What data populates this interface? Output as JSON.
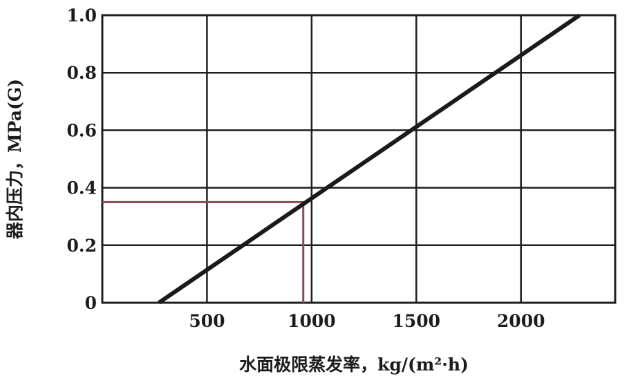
{
  "chart_data": {
    "type": "line",
    "title": "",
    "xlabel": "水面极限蒸发率，kg/(m²·h)",
    "ylabel": "器内压力，MPa(G)",
    "xlim": [
      0,
      2450
    ],
    "ylim": [
      0,
      1.0
    ],
    "x_ticks": [
      {
        "value": 500,
        "label": "500"
      },
      {
        "value": 1000,
        "label": "1000"
      },
      {
        "value": 1500,
        "label": "1500"
      },
      {
        "value": 2000,
        "label": "2000"
      }
    ],
    "y_ticks": [
      {
        "value": 0,
        "label": "0"
      },
      {
        "value": 0.2,
        "label": "0.2"
      },
      {
        "value": 0.4,
        "label": "0.4"
      },
      {
        "value": 0.6,
        "label": "0.6"
      },
      {
        "value": 0.8,
        "label": "0.8"
      },
      {
        "value": 1.0,
        "label": "1.0"
      }
    ],
    "grid": true,
    "series": [
      {
        "x": [
          270,
          2280
        ],
        "y": [
          0,
          1.0
        ],
        "color": "#1a1a1a"
      }
    ],
    "reference_lines": [
      {
        "x": [
          0,
          960,
          960
        ],
        "y": [
          0.35,
          0.35,
          0
        ],
        "color": "#8b4a55"
      }
    ]
  }
}
